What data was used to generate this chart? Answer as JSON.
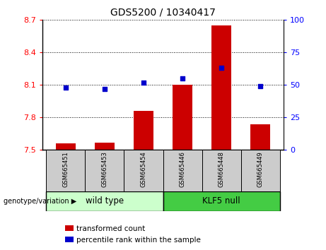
{
  "title": "GDS5200 / 10340417",
  "samples": [
    "GSM665451",
    "GSM665453",
    "GSM665454",
    "GSM665446",
    "GSM665448",
    "GSM665449"
  ],
  "groups": [
    "wild type",
    "wild type",
    "wild type",
    "KLF5 null",
    "KLF5 null",
    "KLF5 null"
  ],
  "group_labels": [
    "wild type",
    "KLF5 null"
  ],
  "transformed_counts": [
    7.56,
    7.57,
    7.86,
    8.1,
    8.65,
    7.74
  ],
  "percentile_ranks": [
    48,
    47,
    52,
    55,
    63,
    49
  ],
  "ylim_left": [
    7.5,
    8.7
  ],
  "ylim_right": [
    0,
    100
  ],
  "yticks_left": [
    7.5,
    7.8,
    8.1,
    8.4,
    8.7
  ],
  "yticks_right": [
    0,
    25,
    50,
    75,
    100
  ],
  "bar_color": "#cc0000",
  "dot_color": "#0000cc",
  "wt_bg": "#ccffcc",
  "klf_bg": "#44cc44",
  "sample_bg": "#cccccc",
  "legend_bar_label": "transformed count",
  "legend_dot_label": "percentile rank within the sample",
  "genotype_label": "genotype/variation"
}
